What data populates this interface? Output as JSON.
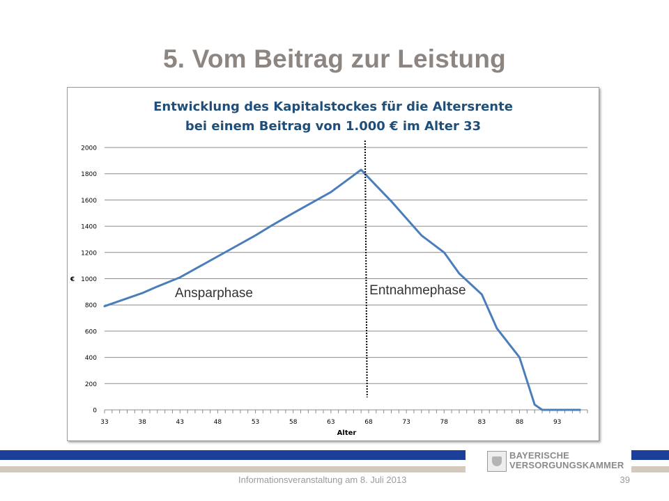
{
  "slide": {
    "title": "5. Vom Beitrag zur Leistung",
    "footer_text": "Informationsveranstaltung am 8. Juli 2013",
    "page_number": "39"
  },
  "logo": {
    "line1": "BAYERISCHE",
    "line2": "VERSORGUNGSKAMMER"
  },
  "colors": {
    "line": "#4a7ebb",
    "title_gray": "#8d8580",
    "chart_title": "#1f4e79",
    "bar_blue": "#1c3f99",
    "bar_beige": "#d3c9bd"
  },
  "chart_data": {
    "type": "line",
    "title_line1": "Entwicklung des Kapitalstockes für die Altersrente",
    "title_line2": "bei einem Beitrag von 1.000 € im Alter 33",
    "xlabel": "Alter",
    "ylabel": "€",
    "xlim": [
      33,
      97
    ],
    "ylim": [
      0,
      2000
    ],
    "x_ticks": [
      33,
      38,
      43,
      48,
      53,
      58,
      63,
      68,
      73,
      78,
      83,
      88,
      93
    ],
    "y_ticks": [
      0,
      200,
      400,
      600,
      800,
      1000,
      1200,
      1400,
      1600,
      1800,
      2000
    ],
    "grid": "horizontal",
    "series": [
      {
        "name": "",
        "x": [
          33,
          38,
          40,
          43,
          48,
          53,
          55,
          58,
          63,
          67,
          69,
          71,
          73,
          75,
          78,
          80,
          83,
          85,
          88,
          90,
          91,
          93,
          96
        ],
        "y": [
          790,
          890,
          940,
          1010,
          1170,
          1330,
          1400,
          1500,
          1660,
          1830,
          1710,
          1590,
          1460,
          1330,
          1200,
          1040,
          880,
          620,
          400,
          40,
          0,
          0,
          0
        ]
      }
    ],
    "divider_x": 67.8,
    "annotations": [
      {
        "text": "Ansparphase",
        "x": 47.5,
        "y": 860
      },
      {
        "text": "Entnahmephase",
        "x": 74.5,
        "y": 880
      }
    ]
  }
}
